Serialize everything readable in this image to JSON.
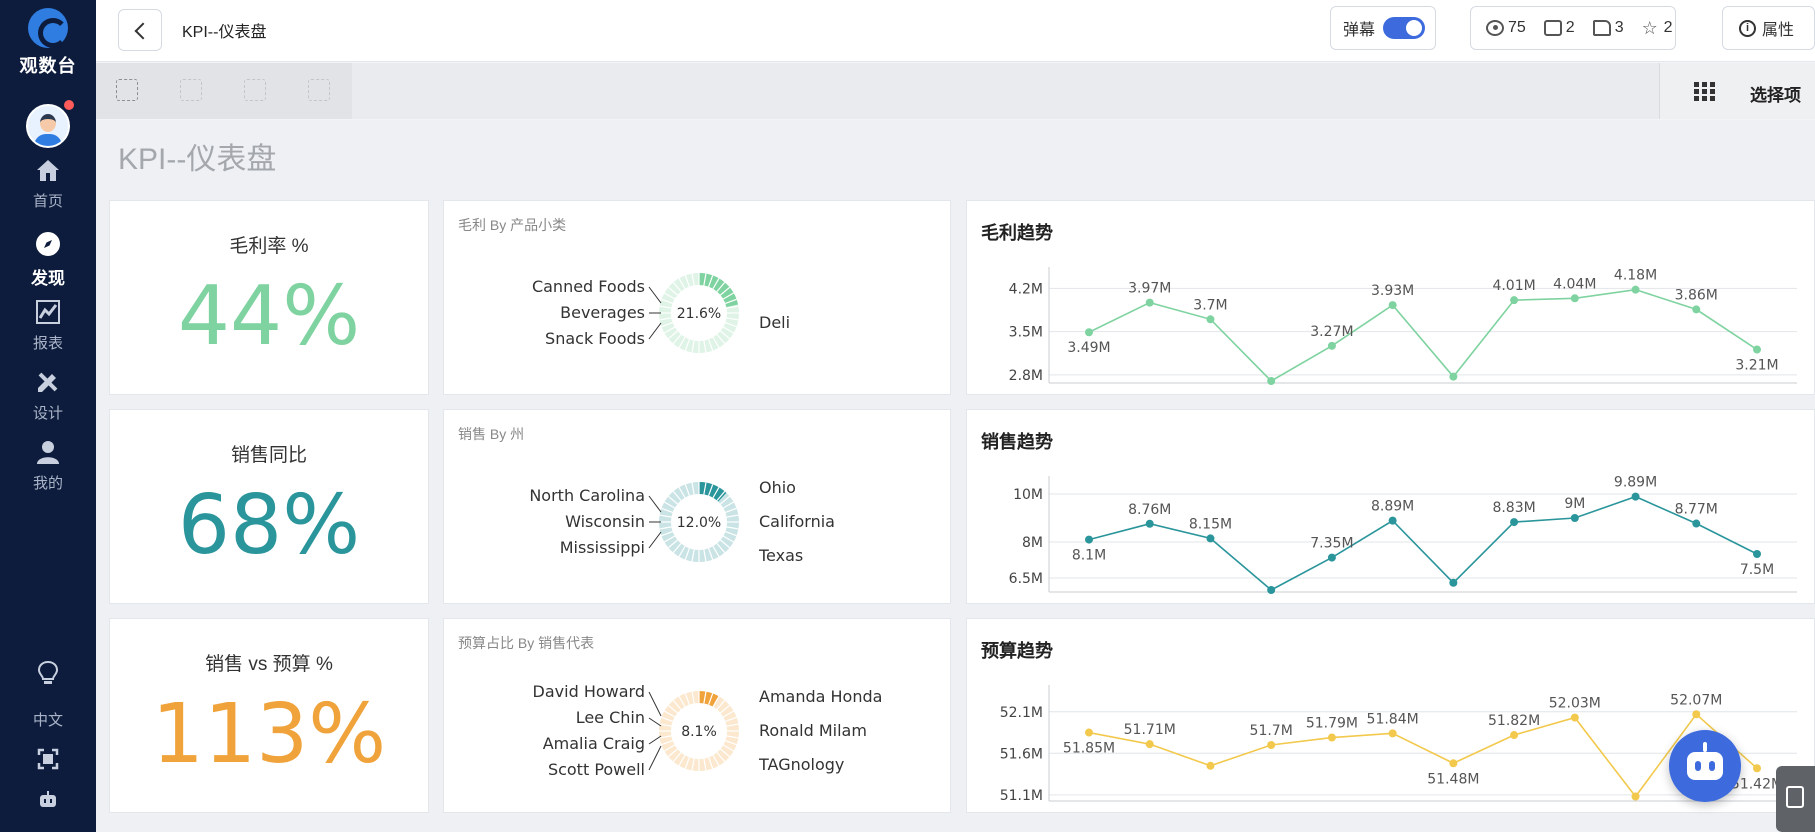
{
  "sidebar": {
    "logo_text": "观数台",
    "nav": [
      {
        "label": "首页",
        "icon": "home-icon"
      },
      {
        "label": "发现",
        "icon": "compass-icon",
        "active": true
      },
      {
        "label": "报表",
        "icon": "report-icon"
      },
      {
        "label": "设计",
        "icon": "design-icon"
      },
      {
        "label": "我的",
        "icon": "user-icon"
      }
    ],
    "language": "中文"
  },
  "topbar": {
    "page_name": "KPI--仪表盘",
    "danmaku_label": "弹幕",
    "views": "75",
    "comments": "2",
    "likes": "3",
    "favorites": "2",
    "properties_label": "属性"
  },
  "toolbar": {
    "select_label": "选择项"
  },
  "dashboard": {
    "title": "KPI--仪表盘",
    "kpis": [
      {
        "label": "毛利率 %",
        "value": "44%",
        "color": "#7fd3a0"
      },
      {
        "label": "销售同比",
        "value": "68%",
        "color": "#2a959b"
      },
      {
        "label": "销售 vs 预算 %",
        "value": "113%",
        "color": "#f0a33b"
      }
    ],
    "donuts": [
      {
        "title": "毛利 By 产品小类",
        "center": "21.6%",
        "left_labels": [
          "Canned Foods",
          "Beverages",
          "Snack Foods"
        ],
        "right_labels": [
          "Deli"
        ],
        "color": "#7fd3a0"
      },
      {
        "title": "销售 By 州",
        "center": "12.0%",
        "left_labels": [
          "North Carolina",
          "Wisconsin",
          "Mississippi"
        ],
        "right_labels": [
          "Ohio",
          "California",
          "Texas"
        ],
        "color": "#2a959b"
      },
      {
        "title": "预算占比 By 销售代表",
        "center": "8.1%",
        "left_labels": [
          "David Howard",
          "Lee Chin",
          "Amalia Craig",
          "Scott Powell"
        ],
        "right_labels": [
          "Amanda Honda",
          "Ronald Milam",
          "TAGnology"
        ],
        "color": "#f0a33b"
      }
    ]
  },
  "chart_data": [
    {
      "type": "line",
      "title": "毛利趋势",
      "y_ticks": [
        "4.2M",
        "3.5M",
        "2.8M"
      ],
      "values": [
        3.49,
        3.97,
        3.7,
        2.7,
        3.27,
        3.93,
        2.77,
        4.01,
        4.04,
        4.18,
        3.86,
        3.21
      ],
      "labels": [
        "3.49M",
        "3.97M",
        "3.7M",
        "",
        "3.27M",
        "3.93M",
        "",
        "4.01M",
        "4.04M",
        "4.18M",
        "3.86M",
        "3.21M"
      ],
      "ylim": [
        2.7,
        4.45
      ],
      "color": "#7fd3a0"
    },
    {
      "type": "line",
      "title": "销售趋势",
      "y_ticks": [
        "10M",
        "8M",
        "6.5M"
      ],
      "values": [
        8.1,
        8.76,
        8.15,
        6.0,
        7.35,
        8.89,
        6.3,
        8.83,
        9.0,
        9.89,
        8.77,
        7.5
      ],
      "labels": [
        "8.1M",
        "8.76M",
        "8.15M",
        "",
        "7.35M",
        "8.89M",
        "",
        "8.83M",
        "9M",
        "9.89M",
        "8.77M",
        "7.5M"
      ],
      "ylim": [
        6.0,
        10.5
      ],
      "color": "#2a959b"
    },
    {
      "type": "line",
      "title": "预算趋势",
      "y_ticks": [
        "52.1M",
        "51.6M",
        "51.1M"
      ],
      "values": [
        51.85,
        51.71,
        51.45,
        51.7,
        51.79,
        51.84,
        51.48,
        51.82,
        52.03,
        51.08,
        52.07,
        51.42
      ],
      "labels": [
        "51.85M",
        "51.71M",
        "",
        "51.7M",
        "51.79M",
        "51.84M",
        "51.48M",
        "51.82M",
        "52.03M",
        "",
        "52.07M",
        "51.42M"
      ],
      "ylim": [
        51.05,
        52.35
      ],
      "color": "#f2c94c"
    }
  ]
}
